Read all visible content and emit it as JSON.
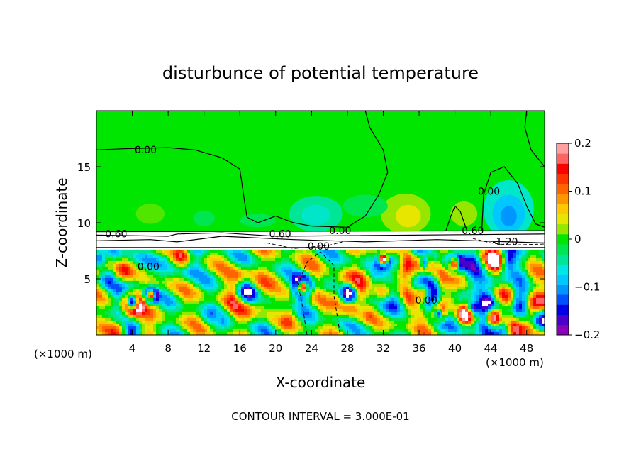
{
  "chart_data": {
    "type": "heatmap",
    "title": "disturbunce of potential temperature",
    "xlabel": "X-coordinate",
    "ylabel": "Z-coordinate",
    "x_unit": "(×1000 m)",
    "y_unit": "(×1000 m)",
    "xlim": [
      0,
      50
    ],
    "ylim": [
      0,
      20
    ],
    "x_ticks": [
      4,
      8,
      12,
      16,
      20,
      24,
      28,
      32,
      36,
      40,
      44,
      48
    ],
    "y_ticks": [
      5,
      10,
      15
    ],
    "colorbar": {
      "range": [
        -0.2,
        0.2
      ],
      "ticks": [
        -0.2,
        -0.1,
        0,
        0.1,
        0.2
      ],
      "tick_labels": [
        "−0.2",
        "−0.1",
        "0",
        "0.1",
        "0.2"
      ],
      "colors": [
        "#8a00b8",
        "#4a00c8",
        "#0000e8",
        "#0050ff",
        "#0096ff",
        "#00c8ff",
        "#00e6e6",
        "#00e696",
        "#00e650",
        "#00e600",
        "#96e600",
        "#e6e600",
        "#ffc800",
        "#ff9600",
        "#ff6400",
        "#ff3200",
        "#ff0000",
        "#ff6464",
        "#ffa0a0"
      ]
    },
    "contour_labels": [
      {
        "text": "0.00",
        "x": 5.5,
        "z": 16.2
      },
      {
        "text": "0.60",
        "x": 2.2,
        "z": 8.7
      },
      {
        "text": "0.60",
        "x": 20.5,
        "z": 8.7
      },
      {
        "text": "0.00",
        "x": 27.2,
        "z": 9.0
      },
      {
        "text": "0.00",
        "x": 24.8,
        "z": 7.6
      },
      {
        "text": "0.00",
        "x": 43.8,
        "z": 12.5
      },
      {
        "text": "0.60",
        "x": 42.0,
        "z": 9.0
      },
      {
        "text": "-1.20",
        "x": 45.6,
        "z": 8.0
      },
      {
        "text": "0.00",
        "x": 5.8,
        "z": 5.8
      },
      {
        "text": "0.00",
        "x": 36.8,
        "z": 2.8
      }
    ],
    "grid": false,
    "legend": "right"
  },
  "footer": {
    "contour_interval": "CONTOUR INTERVAL = 3.000E-01"
  },
  "colors": {
    "background": "#ffffff",
    "field_base": "#00e600"
  }
}
